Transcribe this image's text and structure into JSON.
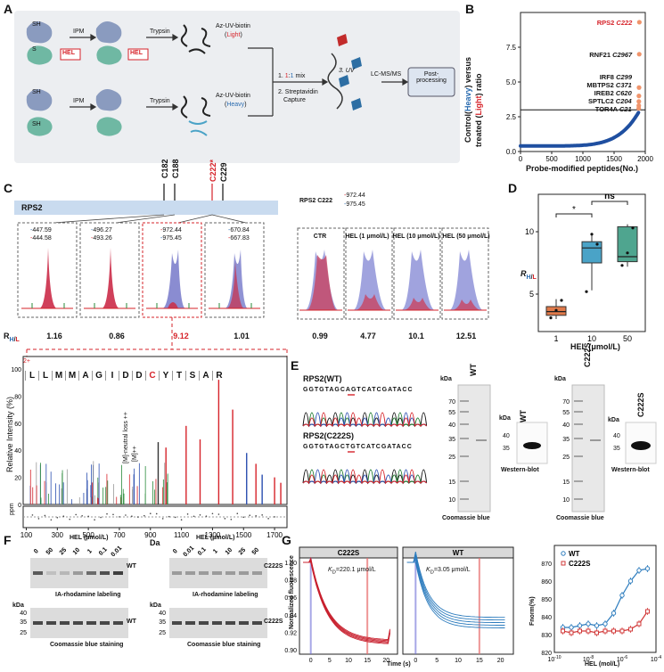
{
  "panels": {
    "A": "A",
    "B": "B",
    "C": "C",
    "D": "D",
    "E": "E",
    "F": "F",
    "G": "G"
  },
  "panelA": {
    "row1": {
      "sh": "SH",
      "ipm": "IPM",
      "trypsin": "Trypsin",
      "probe": "Az-UV-biotin",
      "label_paren_open": "(",
      "label": "Light",
      "label_paren_close": ")",
      "s_label": "S",
      "hel": "HEL"
    },
    "row2": {
      "sh1": "SH",
      "sh2": "SH",
      "ipm": "IPM",
      "trypsin": "Trypsin",
      "probe": "Az-UV-biotin",
      "label_paren_open": "(",
      "label": "Heavy",
      "label_paren_close": ")"
    },
    "step1_prefix": "1. ",
    "step1_ratio_a": "1",
    "step1_colon": ":",
    "step1_ratio_b": "1",
    "step1_suffix": " mix",
    "step2": "2. Streptavidin",
    "step2b": "Capture",
    "step3": "3. UV",
    "lcms": "LC-MS/MS",
    "post1": "Post-",
    "post2": "processing"
  },
  "panelB": {
    "ylabel_pre": "Control(",
    "ylabel_heavy": "Heavy",
    "ylabel_mid": ") versus",
    "ylabel_treated": "treated (",
    "ylabel_light": "Light",
    "ylabel_post": ") ratio",
    "xlabel": "Probe-modified peptides(No.)",
    "yticks": [
      "0.0",
      "2.5",
      "5.0",
      "7.5"
    ],
    "xticks": [
      "0",
      "500",
      "1000",
      "1500",
      "2000"
    ],
    "annotations": [
      {
        "name": "RPS2",
        "site": "C222",
        "highlight": true
      },
      {
        "name": "RNF21",
        "site": "C2967",
        "highlight": false
      },
      {
        "name": "IRF8",
        "site": "C299",
        "highlight": false
      },
      {
        "name": "MBTPS2",
        "site": "C371",
        "highlight": false
      },
      {
        "name": "IREB2",
        "site": "C620",
        "highlight": false
      },
      {
        "name": "SPTLC2",
        "site": "C204",
        "highlight": false
      },
      {
        "name": "TOR4A",
        "site": "C21",
        "highlight": false
      }
    ]
  },
  "panelC": {
    "protein": "RPS2",
    "sites": [
      "C182",
      "C188",
      "C222*",
      "C229"
    ],
    "spectra": [
      {
        "mz1": "447.59",
        "mz2": "444.58",
        "ratio": "1.16"
      },
      {
        "mz1": "496.27",
        "mz2": "493.26",
        "ratio": "0.86"
      },
      {
        "mz1": "972.44",
        "mz2": "975.45",
        "ratio": "9.12"
      },
      {
        "mz1": "670.84",
        "mz2": "667.83",
        "ratio": "1.01"
      }
    ],
    "rhl_prefix": "R",
    "rhl_sub": "H/L",
    "ctr_title": "RPS2 C222",
    "ctr_mz1": "972.44",
    "ctr_mz2": "975.45",
    "conditions": [
      {
        "label": "CTR",
        "ratio": "0.99"
      },
      {
        "label": "HEL (1 μmol/L)",
        "ratio": "4.77"
      },
      {
        "label": "HEL (10 μmol/L)",
        "ratio": "10.1"
      },
      {
        "label": "HEL (50 μmol/L)",
        "ratio": "12.51"
      }
    ],
    "msms": {
      "ylabel": "Relative Intensity (%)",
      "xlabel": "Da",
      "ppm": "ppm",
      "xticks": [
        "100",
        "300",
        "500",
        "700",
        "900",
        "1100",
        "1300",
        "1500",
        "1700"
      ],
      "yticks": [
        "0",
        "20",
        "40",
        "60",
        "80",
        "100"
      ],
      "sequence": [
        "L",
        "L",
        "M",
        "M",
        "A",
        "G",
        "I",
        "D",
        "D",
        "C",
        "Y",
        "T",
        "S",
        "A",
        "R"
      ],
      "charge": "2+",
      "neutral_loss": "[M]-neutral loss ++",
      "m_label": "[M]++"
    }
  },
  "panelD": {
    "ylabel_prefix": "R",
    "ylabel_sub": "H/L",
    "xlabel": "HEL (μmol/L)",
    "categories": [
      "1",
      "10",
      "50"
    ],
    "yticks": [
      "5",
      "10"
    ],
    "sig_star": "*",
    "sig_ns": "ns"
  },
  "panelE": {
    "wt_title": "RPS2(WT)",
    "wt_seq": "GGTGTAGCAGTCATCGATACC",
    "mut_title": "RPS2(C222S)",
    "mut_seq": "GGTGTAGCTGTCATCGATACC",
    "kda": "kDa",
    "ladder": [
      "70",
      "55",
      "40",
      "35",
      "25",
      "15",
      "10"
    ],
    "wt_label": "WT",
    "mut_label": "C222S",
    "coomassie": "Coomassie blue",
    "western": "Western-blot",
    "wb_marks": [
      "40",
      "35"
    ]
  },
  "panelF": {
    "title_left": "HEL (μmol/L)",
    "title_right": "HEL (μmol/L)",
    "lanes_left": [
      "0",
      "50",
      "25",
      "10",
      "1",
      "0.1",
      "0.01"
    ],
    "lanes_right": [
      "0",
      "0.01",
      "0.1",
      "1",
      "10",
      "25",
      "50"
    ],
    "wt": "WT",
    "mut": "C222S",
    "ia_label": "IA-rhodamine labeling",
    "cb_label": "Coomassie blue staining",
    "kda": "kDa",
    "marks_top": [
      "40",
      "35",
      "25"
    ],
    "marks_bottom": [
      "40",
      "35"
    ]
  },
  "panelG": {
    "c222s_title": "C222S",
    "wt_title": "WT",
    "kd_c222s": "220.1 μmol/L",
    "kd_wt": "3.05 μmol/L",
    "kd_prefix": "K",
    "kd_sub": "D",
    "kd_eq": "=",
    "ylabel": "Normalized fluorescence",
    "xlabel": "Time (s)",
    "yticks": [
      "1.00",
      "0.98",
      "0.96",
      "0.94",
      "0.92",
      "0.90"
    ],
    "xticks": [
      "0",
      "5",
      "10",
      "15",
      "20"
    ],
    "fnorm_label": "Fnorm(%)",
    "fnorm_yticks": [
      "870",
      "860",
      "850",
      "840",
      "830",
      "820"
    ],
    "fnorm_xlabel": "HEL (mol/L)",
    "fnorm_xticks": [
      "10^-10",
      "10^-8",
      "10^-6",
      "10^-4"
    ],
    "legend_wt": "WT",
    "legend_mut": "C222S"
  },
  "chart_data": [
    {
      "type": "scatter",
      "title": "Panel B",
      "xlabel": "Probe-modified peptides(No.)",
      "ylabel": "Control(Heavy) versus treated (Light) ratio",
      "xlim": [
        0,
        2000
      ],
      "ylim": [
        0,
        10
      ],
      "threshold": 3.0,
      "highlights": [
        {
          "label": "RPS2 C222",
          "x": 1905,
          "y": 9.3
        },
        {
          "label": "RNF21 C2967",
          "x": 1903,
          "y": 7.0
        },
        {
          "label": "IRF8 C299",
          "x": 1900,
          "y": 4.6
        },
        {
          "label": "MBTPS2 C371",
          "x": 1898,
          "y": 4.0
        },
        {
          "label": "IREB2 C620",
          "x": 1897,
          "y": 3.6
        },
        {
          "label": "SPTLC2 C204",
          "x": 1896,
          "y": 3.3
        },
        {
          "label": "TOR4A C21",
          "x": 1895,
          "y": 3.1
        }
      ]
    },
    {
      "type": "box",
      "title": "Panel D",
      "categories": [
        "1",
        "10",
        "50"
      ],
      "xlabel": "HEL (μmol/L)",
      "ylabel": "RH/L",
      "ylim": [
        2,
        13
      ],
      "series": [
        {
          "name": "1",
          "q1": 3.3,
          "median": 3.6,
          "q3": 4.0,
          "min": 3.0,
          "max": 4.6,
          "points": [
            3.1,
            3.7,
            4.5
          ],
          "color": "#e07a4a"
        },
        {
          "name": "10",
          "q1": 7.5,
          "median": 8.7,
          "q3": 9.2,
          "min": 5.3,
          "max": 9.9,
          "points": [
            5.2,
            9.8,
            9.0
          ],
          "color": "#4aa3c7"
        },
        {
          "name": "50",
          "q1": 7.6,
          "median": 8.0,
          "q3": 10.4,
          "min": 7.2,
          "max": 10.6,
          "points": [
            7.3,
            8.3,
            10.3
          ],
          "color": "#4fa58f"
        }
      ]
    },
    {
      "type": "line",
      "title": "Panel G Fnorm",
      "xlabel": "HEL (mol/L)",
      "ylabel": "Fnorm(%)",
      "xlog": true,
      "xlim": [
        -10,
        -4
      ],
      "ylim": [
        820,
        880
      ],
      "series": [
        {
          "name": "WT",
          "color": "#2b7bbd",
          "x": [
            -9.5,
            -9.0,
            -8.5,
            -8.0,
            -7.5,
            -7.0,
            -6.5,
            -6.0,
            -5.5,
            -5.0,
            -4.5
          ],
          "y": [
            834,
            834,
            835,
            836,
            835,
            836,
            842,
            852,
            860,
            866,
            867
          ]
        },
        {
          "name": "C222S",
          "color": "#d23a3a",
          "x": [
            -9.5,
            -9.0,
            -8.5,
            -8.0,
            -7.5,
            -7.0,
            -6.5,
            -6.0,
            -5.5,
            -5.0,
            -4.5
          ],
          "y": [
            832,
            831,
            832,
            832,
            831,
            832,
            832,
            832,
            833,
            836,
            843
          ]
        }
      ]
    }
  ]
}
